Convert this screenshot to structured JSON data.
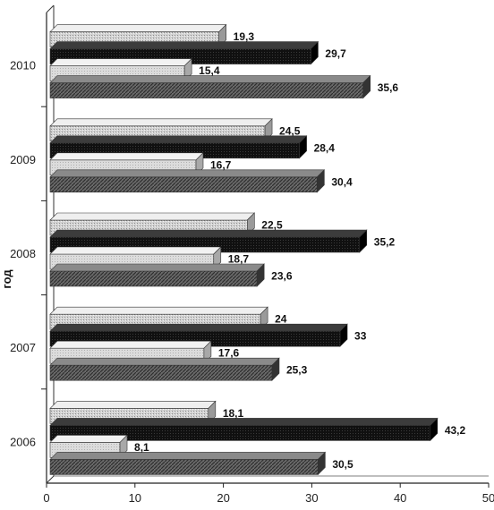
{
  "chart_data": {
    "type": "bar",
    "orientation": "horizontal",
    "three_d": true,
    "ylabel": "год",
    "xlabel": "",
    "categories": [
      "2010",
      "2009",
      "2008",
      "2007",
      "2006"
    ],
    "series": [
      {
        "values": [
          19.3,
          24.5,
          22.5,
          24,
          18.1
        ],
        "labels": [
          "19,3",
          "24,5",
          "22,5",
          "24",
          "18,1"
        ],
        "fill": "light-dotted",
        "color": "#c9c9c9"
      },
      {
        "values": [
          29.7,
          28.4,
          35.2,
          33,
          43.2
        ],
        "labels": [
          "29,7",
          "28,4",
          "35,2",
          "33",
          "43,2"
        ],
        "fill": "black",
        "color": "#111111"
      },
      {
        "values": [
          15.4,
          16.7,
          18.7,
          17.6,
          8.1
        ],
        "labels": [
          "15,4",
          "16,7",
          "18,7",
          "17,6",
          "8,1"
        ],
        "fill": "light-gray",
        "color": "#d6d6d6"
      },
      {
        "values": [
          35.6,
          30.4,
          23.6,
          25.3,
          30.5
        ],
        "labels": [
          "35,6",
          "30,4",
          "23,6",
          "25,3",
          "30,5"
        ],
        "fill": "dark-hatched",
        "color": "#595959"
      }
    ],
    "xlim": [
      0,
      50
    ],
    "xticks": [
      "0",
      "10",
      "20",
      "30",
      "40",
      "50"
    ],
    "grid": false,
    "legend": "none"
  }
}
